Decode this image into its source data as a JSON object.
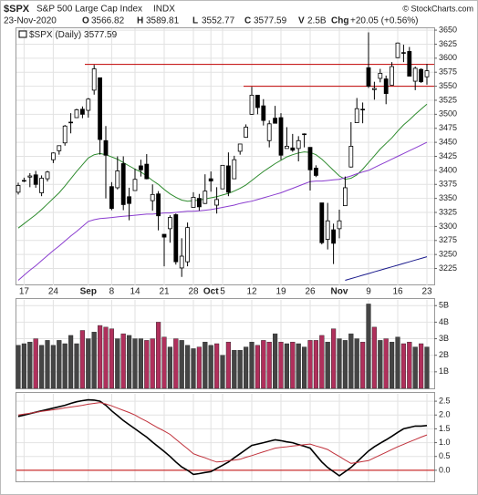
{
  "header": {
    "symbol": "$SPX",
    "name": "S&P 500 Large Cap Index",
    "exchange": "INDX",
    "date": "23-Nov-2020",
    "fields": [
      {
        "label": "O",
        "value": 3566.82
      },
      {
        "label": "H",
        "value": 3589.81
      },
      {
        "label": "L",
        "value": 3552.77
      },
      {
        "label": "C",
        "value": 3577.59
      },
      {
        "label": "V",
        "value": "2.5B"
      },
      {
        "label": "Chg",
        "value": "+20.05 (+0.56%)"
      }
    ],
    "credit": "© StockCharts.com"
  },
  "chart_data": [
    {
      "type": "candlestick",
      "legend": {
        "label": "$SPX (Daily)",
        "value": 3577.59
      },
      "categories": [
        null,
        "17",
        null,
        null,
        null,
        null,
        "24",
        null,
        null,
        null,
        null,
        null,
        "Sep",
        null,
        null,
        null,
        "8",
        null,
        null,
        null,
        "14",
        null,
        null,
        null,
        null,
        "21",
        null,
        null,
        null,
        null,
        "28",
        null,
        null,
        "Oct",
        null,
        "5",
        null,
        null,
        null,
        null,
        "12",
        null,
        null,
        null,
        null,
        "19",
        null,
        null,
        null,
        null,
        "26",
        null,
        null,
        null,
        null,
        "Nov",
        null,
        null,
        null,
        null,
        "9",
        null,
        null,
        null,
        null,
        "16",
        null,
        null,
        null,
        null,
        "23"
      ],
      "open": [
        3361,
        3381,
        3388,
        3392,
        3360,
        3385,
        3419,
        3435,
        3449,
        3486,
        3494,
        3509,
        3507,
        3543,
        3565,
        3453,
        3371,
        3369,
        3412,
        3353,
        3364,
        3408,
        3411,
        3346,
        3358,
        3286,
        3296,
        3321,
        3226,
        3237,
        3334,
        3350,
        3341,
        3385,
        3338,
        3367,
        3408,
        3385,
        3434,
        3459,
        3500,
        3534,
        3515,
        3453,
        3493,
        3494,
        3439,
        3440,
        3439,
        3464,
        3441,
        3404,
        3342,
        3277,
        3294,
        3296,
        3337,
        3406,
        3485,
        3509,
        3583,
        3544,
        3564,
        3563,
        3552,
        3601,
        3610,
        3612,
        3559,
        3580,
        3566.82
      ],
      "high": [
        3378,
        3387,
        3395,
        3399,
        3391,
        3399,
        3432,
        3444,
        3481,
        3502,
        3510,
        3514,
        3529,
        3588,
        3565,
        3479,
        3379,
        3425,
        3425,
        3369,
        3403,
        3419,
        3429,
        3375,
        3363,
        3286,
        3320,
        3323,
        3279,
        3307,
        3361,
        3358,
        3393,
        3398,
        3370,
        3409,
        3432,
        3426,
        3447,
        3482,
        3549,
        3534,
        3527,
        3489,
        3515,
        3502,
        3477,
        3465,
        3461,
        3466,
        3441,
        3409,
        3342,
        3342,
        3305,
        3330,
        3389,
        3486,
        3529,
        3521,
        3646,
        3558,
        3581,
        3569,
        3593,
        3628,
        3624,
        3620,
        3585,
        3582,
        3589.81
      ],
      "low": [
        3357,
        3379,
        3370,
        3369,
        3354,
        3380,
        3413,
        3428,
        3444,
        3466,
        3495,
        3493,
        3494,
        3535,
        3428,
        3350,
        3329,
        3366,
        3329,
        3311,
        3364,
        3389,
        3384,
        3328,
        3293,
        3229,
        3271,
        3232,
        3210,
        3229,
        3334,
        3328,
        3340,
        3362,
        3323,
        3367,
        3354,
        3385,
        3428,
        3458,
        3499,
        3500,
        3480,
        3441,
        3484,
        3419,
        3439,
        3433,
        3416,
        3441,
        3364,
        3388,
        3268,
        3259,
        3233,
        3279,
        3337,
        3405,
        3485,
        3484,
        3547,
        3526,
        3557,
        3518,
        3552,
        3600,
        3593,
        3568,
        3543,
        3556,
        3552.77
      ],
      "close": [
        3373,
        3382,
        3390,
        3375,
        3386,
        3397,
        3431,
        3444,
        3479,
        3485,
        3508,
        3500,
        3527,
        3581,
        3455,
        3427,
        3332,
        3399,
        3339,
        3341,
        3384,
        3401,
        3385,
        3357,
        3319,
        3281,
        3316,
        3237,
        3247,
        3298,
        3352,
        3335,
        3363,
        3381,
        3348,
        3409,
        3361,
        3419,
        3447,
        3477,
        3534,
        3512,
        3489,
        3483,
        3484,
        3427,
        3443,
        3436,
        3453,
        3465,
        3401,
        3391,
        3271,
        3310,
        3270,
        3310,
        3369,
        3443,
        3510,
        3509,
        3550,
        3546,
        3573,
        3537,
        3585,
        3627,
        3610,
        3568,
        3582,
        3558,
        3577.59
      ],
      "candle_color": "#000000",
      "overlays": [
        {
          "color": "#2e8b2e",
          "values": [
            3297,
            3305,
            3313,
            3321,
            3330,
            3340,
            3350,
            3360,
            3372,
            3385,
            3398,
            3410,
            3422,
            3428,
            3430,
            3428,
            3424,
            3420,
            3414,
            3408,
            3402,
            3397,
            3390,
            3382,
            3375,
            3366,
            3358,
            3352,
            3347,
            3345,
            3346,
            3347,
            3349,
            3351,
            3353,
            3356,
            3359,
            3363,
            3368,
            3374,
            3382,
            3390,
            3398,
            3405,
            3412,
            3418,
            3424,
            3428,
            3431,
            3433,
            3432,
            3428,
            3420,
            3410,
            3400,
            3390,
            3384,
            3386,
            3392,
            3402,
            3414,
            3426,
            3438,
            3448,
            3458,
            3470,
            3481,
            3490,
            3500,
            3509,
            3518
          ]
        },
        {
          "color": "#8a3ccf",
          "values": [
            3204,
            3213,
            3222,
            3230,
            3239,
            3248,
            3257,
            3265,
            3274,
            3283,
            3291,
            3300,
            3309,
            3312,
            3314,
            3315,
            3316,
            3317,
            3318,
            3319,
            3320,
            3321,
            3322,
            3322,
            3323,
            3324,
            3324,
            3325,
            3326,
            3327,
            3327,
            3328,
            3329,
            3330,
            3332,
            3334,
            3336,
            3338,
            3341,
            3343,
            3345,
            3348,
            3351,
            3354,
            3357,
            3360,
            3364,
            3368,
            3372,
            3376,
            3380,
            3381,
            3381,
            3382,
            3383,
            3384,
            3387,
            3390,
            3394,
            3397,
            3400,
            3405,
            3410,
            3415,
            3420,
            3425,
            3430,
            3435,
            3440,
            3445,
            3450
          ]
        },
        {
          "color": "#1a1a8c",
          "values": [
            null,
            null,
            null,
            null,
            null,
            null,
            null,
            null,
            null,
            null,
            null,
            null,
            null,
            null,
            null,
            null,
            null,
            null,
            null,
            null,
            null,
            null,
            null,
            null,
            null,
            null,
            null,
            null,
            null,
            null,
            null,
            null,
            null,
            null,
            null,
            null,
            null,
            null,
            null,
            null,
            null,
            null,
            null,
            null,
            null,
            null,
            null,
            null,
            null,
            null,
            null,
            null,
            null,
            null,
            null,
            null,
            3204,
            3207,
            3210,
            3213,
            3216,
            3219,
            3222,
            3225,
            3228,
            3231,
            3234,
            3237,
            3240,
            3243,
            3246
          ]
        }
      ],
      "hlines": [
        {
          "value": 3589,
          "color": "#c00000"
        },
        {
          "value": 3550,
          "color": "#c00000"
        }
      ],
      "ylim": [
        3195,
        3655
      ],
      "yticks": [
        3225,
        3250,
        3275,
        3300,
        3325,
        3350,
        3375,
        3400,
        3425,
        3450,
        3475,
        3500,
        3525,
        3550,
        3575,
        3600,
        3625,
        3650
      ],
      "grid": true
    },
    {
      "type": "bar",
      "up_color": "#454545",
      "down_color": "#b0305c",
      "values": [
        2.6,
        2.7,
        2.8,
        3.0,
        2.6,
        2.9,
        2.6,
        2.9,
        2.7,
        3.2,
        2.7,
        3.5,
        3.0,
        3.4,
        3.8,
        3.7,
        3.6,
        3.0,
        3.3,
        3.2,
        3.0,
        3.0,
        2.9,
        3.0,
        4.0,
        3.1,
        2.5,
        3.0,
        2.9,
        2.6,
        2.4,
        2.5,
        2.8,
        2.6,
        2.7,
        2.0,
        2.8,
        2.3,
        2.3,
        2.5,
        2.8,
        2.6,
        2.9,
        2.8,
        3.3,
        2.8,
        2.7,
        2.8,
        2.7,
        2.5,
        2.9,
        2.9,
        3.2,
        2.8,
        3.6,
        3.0,
        2.9,
        3.3,
        3.0,
        2.8,
        5.1,
        3.7,
        2.9,
        3.0,
        2.8,
        3.1,
        2.7,
        2.8,
        2.5,
        2.7,
        2.5
      ],
      "ylim": [
        0,
        5.4
      ],
      "yticks": [
        {
          "value": 1,
          "label": "1B"
        },
        {
          "value": 2,
          "label": "2B"
        },
        {
          "value": 3,
          "label": "3B"
        },
        {
          "value": 4,
          "label": "4B"
        },
        {
          "value": 5,
          "label": "5B"
        }
      ],
      "grid": true
    },
    {
      "type": "line",
      "series": [
        {
          "color": "#000000",
          "values": [
            1.95,
            2.0,
            2.05,
            2.1,
            2.15,
            2.2,
            2.25,
            2.3,
            2.35,
            2.42,
            2.48,
            2.52,
            2.55,
            2.54,
            2.5,
            2.35,
            2.15,
            1.98,
            1.8,
            1.65,
            1.5,
            1.35,
            1.2,
            1.02,
            0.85,
            0.68,
            0.5,
            0.3,
            0.12,
            0.0,
            -0.15,
            -0.12,
            -0.08,
            -0.05,
            0.07,
            0.18,
            0.3,
            0.45,
            0.6,
            0.75,
            0.9,
            0.95,
            1.0,
            1.05,
            1.1,
            1.07,
            1.03,
            1.0,
            0.93,
            0.87,
            0.8,
            0.55,
            0.3,
            0.1,
            -0.05,
            -0.2,
            -0.05,
            0.1,
            0.3,
            0.5,
            0.7,
            0.85,
            0.98,
            1.1,
            1.23,
            1.37,
            1.5,
            1.55,
            1.6,
            1.6,
            1.62
          ]
        },
        {
          "color": "#c0303a",
          "values": [
            2.0,
            2.03,
            2.06,
            2.1,
            2.13,
            2.16,
            2.19,
            2.22,
            2.26,
            2.29,
            2.32,
            2.35,
            2.39,
            2.42,
            2.45,
            2.4,
            2.33,
            2.25,
            2.17,
            2.09,
            2.0,
            1.88,
            1.77,
            1.65,
            1.53,
            1.42,
            1.3,
            1.12,
            0.95,
            0.78,
            0.6,
            0.52,
            0.45,
            0.37,
            0.3,
            0.32,
            0.35,
            0.37,
            0.4,
            0.47,
            0.53,
            0.6,
            0.67,
            0.73,
            0.8,
            0.83,
            0.85,
            0.88,
            0.9,
            0.93,
            0.95,
            0.88,
            0.82,
            0.75,
            0.62,
            0.5,
            0.37,
            0.25,
            0.28,
            0.32,
            0.35,
            0.45,
            0.55,
            0.65,
            0.75,
            0.85,
            0.94,
            1.03,
            1.11,
            1.2,
            1.28
          ]
        }
      ],
      "zero_line_color": "#c00000",
      "ylim": [
        -0.4,
        2.8
      ],
      "yticks": [
        {
          "value": 0,
          "label": "0.0"
        },
        0.5,
        {
          "value": 1,
          "label": "1.0"
        },
        1.5,
        {
          "value": 2,
          "label": "2.0"
        },
        2.5
      ],
      "grid": true
    }
  ]
}
